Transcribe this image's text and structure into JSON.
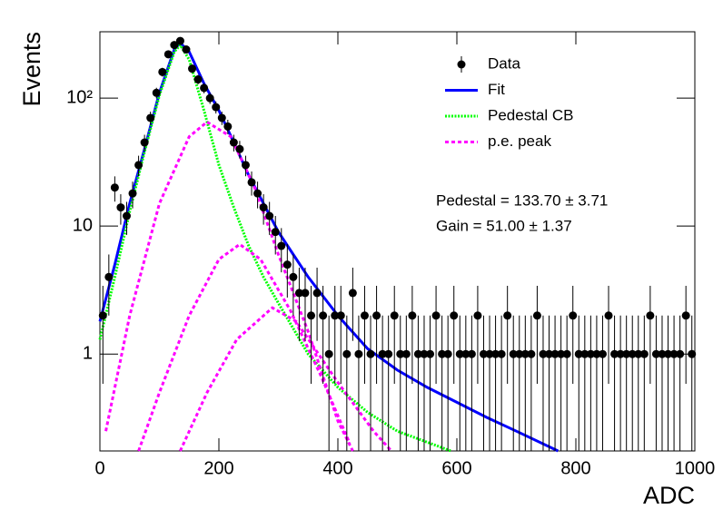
{
  "chart_data": {
    "type": "scatter",
    "xlabel": "ADC",
    "ylabel": "Events",
    "xlim": [
      0,
      1000
    ],
    "xticks": [
      0,
      200,
      400,
      600,
      800,
      1000
    ],
    "ylim": [
      0.175,
      330
    ],
    "log_y": true,
    "yticks": [
      1,
      10,
      {
        "value": 100,
        "label": "10²"
      }
    ],
    "legend": "top-right",
    "annotations": [
      "Pedestal = 133.70 ± 3.71",
      "Gain = 51.00 ± 1.37"
    ],
    "data": {
      "name": "Data",
      "color": "#000000",
      "error_bars": "poisson",
      "x": [
        5,
        15,
        25,
        35,
        45,
        55,
        65,
        75,
        85,
        95,
        105,
        115,
        125,
        135,
        145,
        155,
        165,
        175,
        185,
        195,
        205,
        215,
        225,
        235,
        245,
        255,
        265,
        275,
        285,
        295,
        305,
        315,
        325,
        335,
        345,
        355,
        365,
        375,
        385,
        395,
        405,
        415,
        425,
        435,
        445,
        455,
        465,
        475,
        485,
        495,
        505,
        515,
        525,
        535,
        545,
        555,
        565,
        575,
        585,
        595,
        605,
        615,
        625,
        635,
        645,
        655,
        665,
        675,
        685,
        695,
        705,
        715,
        725,
        735,
        745,
        755,
        765,
        775,
        785,
        795,
        805,
        815,
        825,
        835,
        845,
        855,
        865,
        875,
        885,
        895,
        905,
        915,
        925,
        935,
        945,
        955,
        965,
        975,
        985,
        995
      ],
      "values": [
        2,
        4,
        20,
        14,
        12,
        18,
        30,
        45,
        70,
        110,
        160,
        220,
        260,
        280,
        240,
        170,
        140,
        120,
        100,
        85,
        70,
        60,
        45,
        40,
        30,
        22,
        18,
        14,
        12,
        9,
        7,
        5,
        4,
        3,
        3,
        2,
        3,
        2,
        1,
        2,
        2,
        1,
        3,
        1,
        2,
        1,
        2,
        1,
        1,
        2,
        1,
        1,
        2,
        1,
        1,
        1,
        2,
        1,
        1,
        2,
        1,
        1,
        1,
        2,
        1,
        1,
        1,
        1,
        2,
        1,
        1,
        1,
        1,
        2,
        1,
        1,
        1,
        1,
        1,
        2,
        1,
        1,
        1,
        1,
        1,
        2,
        1,
        1,
        1,
        1,
        1,
        1,
        2,
        1,
        1,
        1,
        1,
        1,
        2,
        1
      ]
    },
    "series": [
      {
        "name": "Fit",
        "color": "#0000ff",
        "style": "solid",
        "curves": [
          {
            "x": [
              0,
              25,
              50,
              75,
              100,
              125,
              135,
              150,
              175,
              200,
              225,
              250,
              275,
              300,
              325,
              350,
              400,
              450,
              500,
              550,
              600,
              650,
              700,
              770
            ],
            "values": [
              1.8,
              5,
              15,
              40,
              110,
              240,
              270,
              230,
              130,
              80,
              45,
              25,
              15,
              9,
              6,
              4,
              2,
              1.1,
              0.75,
              0.55,
              0.42,
              0.32,
              0.25,
              0.175
            ]
          }
        ]
      },
      {
        "name": "Pedestal CB",
        "color": "#00ff00",
        "style": "dotted",
        "curves": [
          {
            "x": [
              0,
              25,
              50,
              75,
              100,
              125,
              135,
              150,
              175,
              200,
              225,
              250,
              275,
              300,
              350,
              400,
              450,
              500,
              590
            ],
            "values": [
              1.3,
              4,
              13,
              38,
              105,
              230,
              260,
              200,
              80,
              30,
              14,
              7,
              4,
              2.5,
              1,
              0.55,
              0.35,
              0.25,
              0.175
            ]
          }
        ]
      },
      {
        "name": "p.e. peak",
        "color": "#ff00ff",
        "style": "dashed",
        "curves": [
          {
            "x": [
              10,
              50,
              100,
              150,
              180,
              220,
              260,
              300,
              350,
              400,
              425
            ],
            "values": [
              0.25,
              2,
              15,
              50,
              65,
              50,
              20,
              6,
              1.5,
              0.3,
              0.175
            ]
          },
          {
            "x": [
              65,
              100,
              150,
              200,
              235,
              270,
              320,
              370,
              420
            ],
            "values": [
              0.175,
              0.5,
              2,
              5.5,
              7.2,
              5.5,
              2.2,
              0.7,
              0.2
            ]
          },
          {
            "x": [
              135,
              180,
              230,
              290,
              330,
              400,
              460,
              490
            ],
            "values": [
              0.175,
              0.5,
              1.3,
              2.3,
              1.8,
              0.6,
              0.25,
              0.175
            ]
          }
        ]
      }
    ]
  }
}
